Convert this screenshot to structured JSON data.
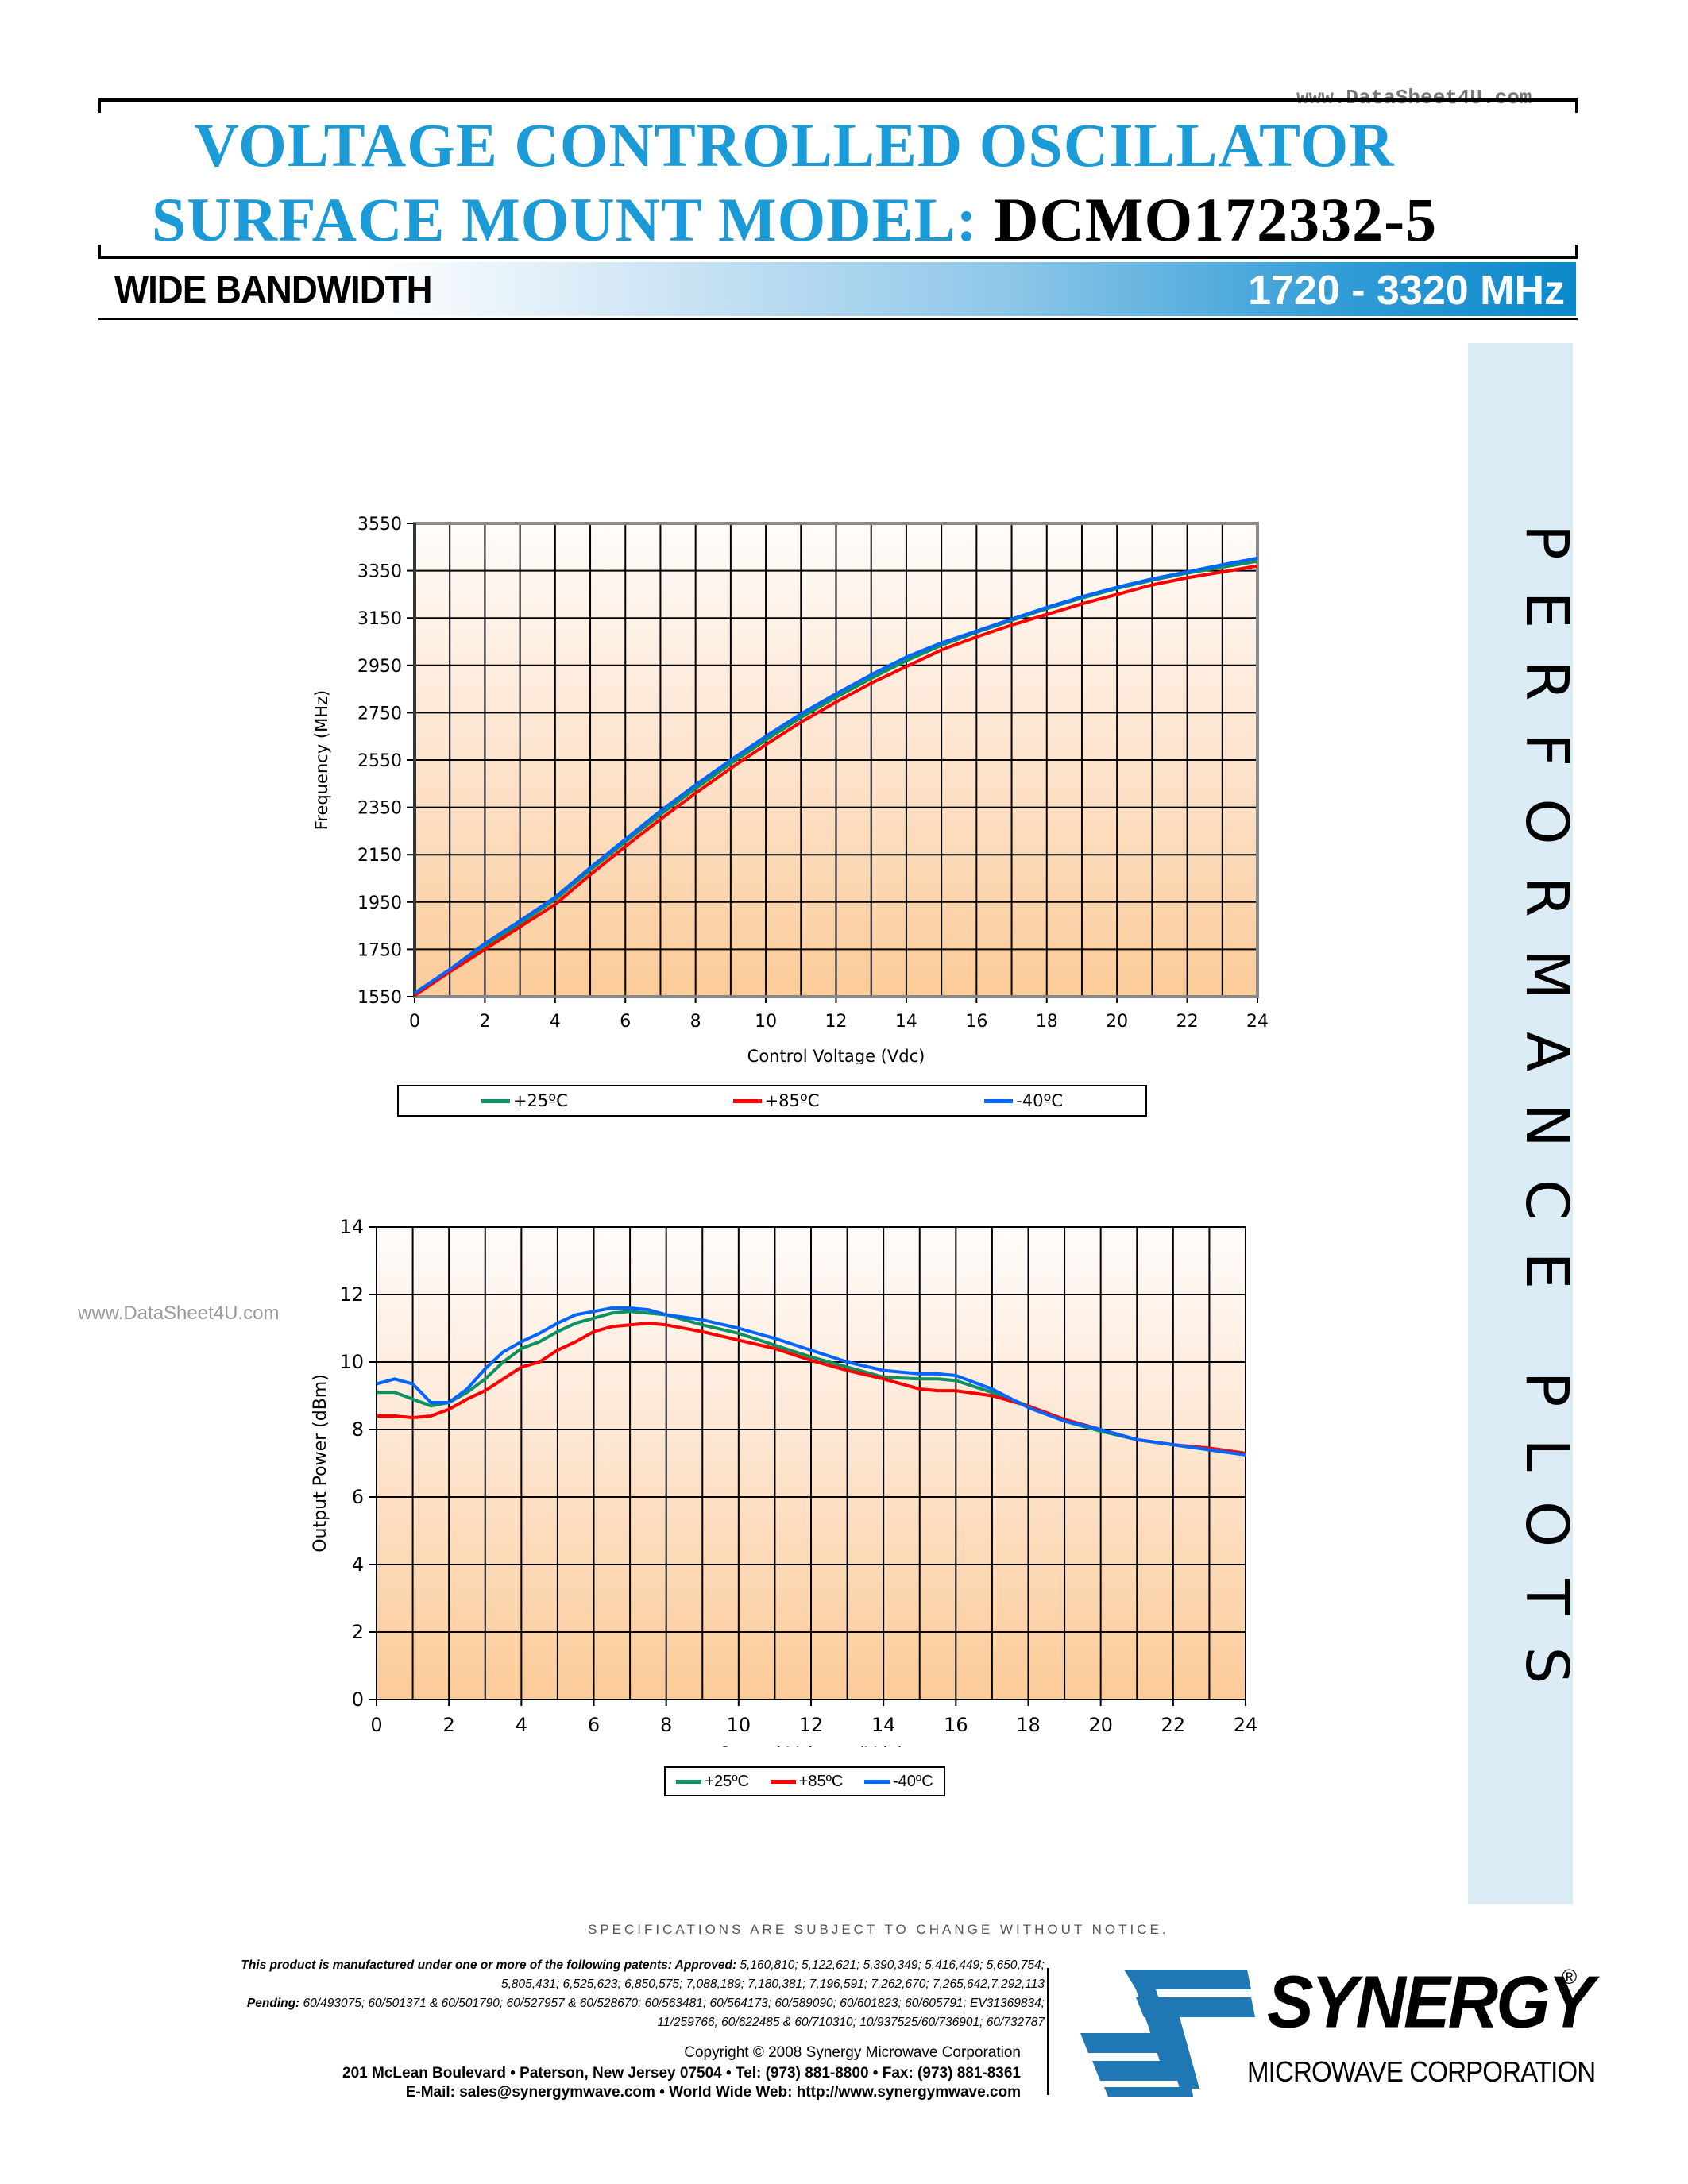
{
  "header": {
    "watermark_top": "www.DataSheet4U.com",
    "title_line1": "VOLTAGE CONTROLLED OSCILLATOR",
    "title_line2_prefix": "SURFACE MOUNT MODEL:",
    "model": "DCMO172332-5",
    "band_left": "WIDE BANDWIDTH",
    "band_right": "1720 - 3320 MHz"
  },
  "sidebar": {
    "label": "PERFORMANCE PLOTS"
  },
  "watermark_left": "www.DataSheet4U.com",
  "colors": {
    "title_blue": "#1a9ad6",
    "series_25C": "#0e9060",
    "series_85C": "#ff0000",
    "series_m40C": "#0066ff",
    "plot_bg_top": "#fffcfa",
    "plot_bg_bottom": "#fccb98",
    "sidebar_bg": "#dcecf7"
  },
  "chart_data": [
    {
      "type": "line",
      "title": "",
      "xlabel": "Control Voltage (Vdc)",
      "ylabel": "Frequency  (MHz)",
      "xlim": [
        0,
        24
      ],
      "ylim": [
        1550,
        3550
      ],
      "xticks": [
        0,
        2,
        4,
        6,
        8,
        10,
        12,
        14,
        16,
        18,
        20,
        22,
        24
      ],
      "yticks": [
        1550,
        1750,
        1950,
        2150,
        2350,
        2550,
        2750,
        2950,
        3150,
        3350,
        3550
      ],
      "grid": true,
      "legend_position": "bottom",
      "x": [
        0,
        1,
        2,
        3,
        4,
        5,
        6,
        7,
        8,
        9,
        10,
        11,
        12,
        13,
        14,
        15,
        16,
        17,
        18,
        19,
        20,
        21,
        22,
        23,
        24
      ],
      "series": [
        {
          "name": "+25ºC",
          "color": "#0e9060",
          "values": [
            1560,
            1660,
            1765,
            1860,
            1960,
            2085,
            2205,
            2320,
            2430,
            2535,
            2635,
            2730,
            2815,
            2895,
            2970,
            3035,
            3090,
            3140,
            3190,
            3235,
            3275,
            3310,
            3340,
            3365,
            3390
          ]
        },
        {
          "name": "+85ºC",
          "color": "#ff0000",
          "values": [
            1555,
            1655,
            1750,
            1845,
            1940,
            2065,
            2185,
            2300,
            2410,
            2515,
            2615,
            2710,
            2795,
            2875,
            2945,
            3015,
            3070,
            3120,
            3165,
            3210,
            3250,
            3290,
            3320,
            3345,
            3370
          ]
        },
        {
          "name": "-40ºC",
          "color": "#0066ff",
          "values": [
            1565,
            1665,
            1775,
            1870,
            1970,
            2095,
            2215,
            2335,
            2445,
            2550,
            2650,
            2745,
            2830,
            2910,
            2985,
            3045,
            3095,
            3145,
            3195,
            3240,
            3280,
            3315,
            3345,
            3375,
            3403
          ]
        }
      ]
    },
    {
      "type": "line",
      "title": "",
      "xlabel": "Control Voltage (Vdc)",
      "ylabel": "Output Power (dBm)",
      "xlim": [
        0,
        24
      ],
      "ylim": [
        0,
        14
      ],
      "xticks": [
        0,
        2,
        4,
        6,
        8,
        10,
        12,
        14,
        16,
        18,
        20,
        22,
        24
      ],
      "yticks": [
        0,
        2,
        4,
        6,
        8,
        10,
        12,
        14
      ],
      "grid": true,
      "legend_position": "bottom",
      "x": [
        0,
        0.5,
        1,
        1.5,
        2,
        2.5,
        3,
        3.5,
        4,
        4.5,
        5,
        5.5,
        6,
        6.5,
        7,
        7.5,
        8,
        9,
        10,
        11,
        12,
        13,
        14,
        15,
        15.5,
        16,
        17,
        18,
        19,
        20,
        21,
        22,
        23,
        24
      ],
      "series": [
        {
          "name": "+25ºC",
          "color": "#0e9060",
          "values": [
            9.1,
            9.1,
            8.9,
            8.7,
            8.8,
            9.1,
            9.5,
            10.0,
            10.4,
            10.6,
            10.9,
            11.15,
            11.3,
            11.45,
            11.5,
            11.45,
            11.4,
            11.1,
            10.85,
            10.5,
            10.15,
            9.85,
            9.55,
            9.5,
            9.5,
            9.45,
            9.1,
            8.7,
            8.25,
            7.95,
            7.7,
            7.55,
            7.4,
            7.25
          ]
        },
        {
          "name": "+85ºC",
          "color": "#ff0000",
          "values": [
            8.4,
            8.4,
            8.35,
            8.4,
            8.6,
            8.9,
            9.15,
            9.5,
            9.85,
            10.0,
            10.35,
            10.6,
            10.9,
            11.05,
            11.1,
            11.15,
            11.1,
            10.9,
            10.65,
            10.4,
            10.05,
            9.75,
            9.5,
            9.2,
            9.15,
            9.15,
            9.0,
            8.7,
            8.3,
            8.0,
            7.7,
            7.55,
            7.45,
            7.3
          ]
        },
        {
          "name": "-40ºC",
          "color": "#0066ff",
          "values": [
            9.35,
            9.5,
            9.35,
            8.8,
            8.8,
            9.2,
            9.8,
            10.3,
            10.6,
            10.85,
            11.15,
            11.4,
            11.5,
            11.6,
            11.6,
            11.55,
            11.4,
            11.25,
            11.0,
            10.7,
            10.35,
            10.0,
            9.75,
            9.65,
            9.65,
            9.6,
            9.2,
            8.65,
            8.25,
            8.0,
            7.7,
            7.55,
            7.4,
            7.25
          ]
        }
      ]
    }
  ],
  "footer": {
    "spec_notice": "SPECIFICATIONS ARE SUBJECT TO CHANGE WITHOUT NOTICE.",
    "patents_intro": "This product is manufactured under one or more of the following patents: Approved:",
    "patents_approved_1": "5,160,810; 5,122,621; 5,390,349; 5,416,449; 5,650,754;",
    "patents_approved_2": "5,805,431; 6,525,623; 6,850,575; 7,088,189; 7,180,381; 7,196,591; 7,262,670; 7,265,642,7,292,113",
    "pending_label": "Pending:",
    "patents_pending_1": "60/493075; 60/501371 & 60/501790; 60/527957 & 60/528670; 60/563481; 60/564173; 60/589090; 60/601823; 60/605791; EV31369834;",
    "patents_pending_2": "11/259766; 60/622485 & 60/710310; 10/937525/60/736901; 60/732787",
    "copyright": "Copyright © 2008 Synergy Microwave Corporation",
    "address": "201 McLean Boulevard • Paterson, New Jersey 07504 • Tel: (973) 881-8800 • Fax: (973) 881-8361",
    "contact": "E-Mail: sales@synergymwave.com • World Wide Web: http://www.synergymwave.com",
    "logo_word": "SYNERGY",
    "logo_reg": "®",
    "logo_sub": "MICROWAVE CORPORATION"
  }
}
